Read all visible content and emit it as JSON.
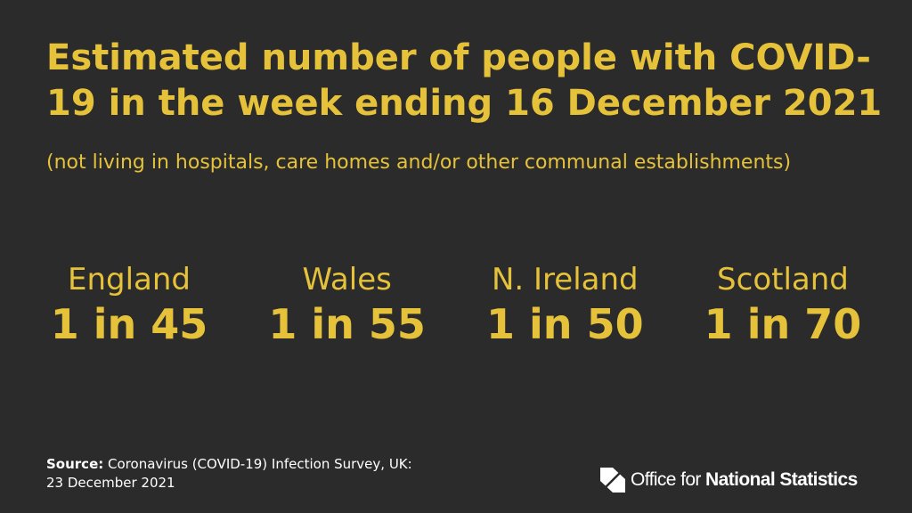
{
  "title": "Estimated number of people with COVID-19 in the week ending 16 December 2021",
  "subtitle": "(not living in hospitals, care homes and/or other communal establishments)",
  "stats": [
    {
      "country": "England",
      "value": "1 in 45"
    },
    {
      "country": "Wales",
      "value": "1 in 55"
    },
    {
      "country": "N. Ireland",
      "value": "1 in 50"
    },
    {
      "country": "Scotland",
      "value": "1 in 70"
    }
  ],
  "source": {
    "label": "Source:",
    "text": "Coronavirus (COVID-19) Infection Survey, UK:",
    "date": "23 December 2021"
  },
  "logo": {
    "text_regular": "Office for ",
    "text_bold": "National Statistics",
    "icon": "ons-logo-icon"
  },
  "colors": {
    "background": "#2b2b2b",
    "accent": "#e5c23a",
    "text": "#ffffff"
  }
}
